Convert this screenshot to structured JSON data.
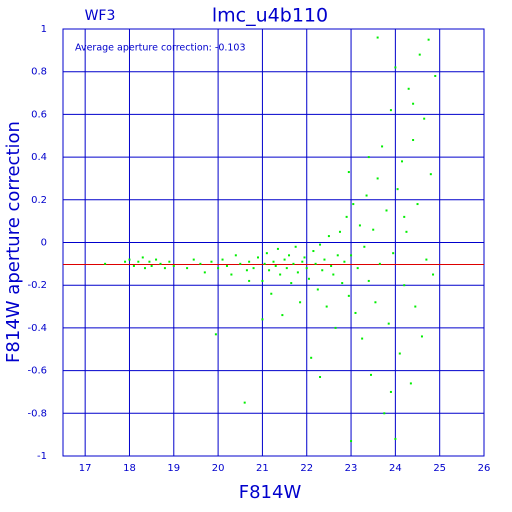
{
  "chart_data": {
    "type": "scatter",
    "title": "lmc_u4b110",
    "subtitle": "WF3",
    "x_label": "F814W",
    "y_label": "F814W aperture correction",
    "reference_line": {
      "value": -0.103,
      "label": "Average aperture correction: -0.103",
      "color": "#dd0000"
    },
    "color": "#00ee00",
    "axis_color": "#0000cc",
    "grid": true,
    "xlim": [
      16.5,
      26
    ],
    "ylim": [
      -1,
      1
    ],
    "xticks": [
      17,
      18,
      19,
      20,
      21,
      22,
      23,
      24,
      25,
      26
    ],
    "yticks": [
      -1,
      -0.8,
      -0.6,
      -0.4,
      -0.2,
      0,
      0.2,
      0.4,
      0.6,
      0.8,
      1
    ],
    "x": [
      17.45,
      17.9,
      18.0,
      18.1,
      18.2,
      18.3,
      18.35,
      18.45,
      18.5,
      18.6,
      18.7,
      18.8,
      18.9,
      19.0,
      19.3,
      19.45,
      19.6,
      19.7,
      19.85,
      19.95,
      20.0,
      20.1,
      20.2,
      20.3,
      20.4,
      20.5,
      20.6,
      20.65,
      20.7,
      20.8,
      20.9,
      21.0,
      21.05,
      21.1,
      21.15,
      21.2,
      21.25,
      21.3,
      21.35,
      21.4,
      21.45,
      21.5,
      21.55,
      21.6,
      21.65,
      21.7,
      21.75,
      21.8,
      21.85,
      21.9,
      21.95,
      22.0,
      22.05,
      22.1,
      22.15,
      22.2,
      22.25,
      22.3,
      22.35,
      22.4,
      22.45,
      22.5,
      22.55,
      22.6,
      22.65,
      22.7,
      22.75,
      22.8,
      22.85,
      22.9,
      22.95,
      23.0,
      23.05,
      23.1,
      23.15,
      23.2,
      23.25,
      23.3,
      23.35,
      23.4,
      23.45,
      23.5,
      23.55,
      23.6,
      23.65,
      23.7,
      23.75,
      23.8,
      23.85,
      23.9,
      23.95,
      24.0,
      24.0,
      24.05,
      24.1,
      24.15,
      24.2,
      24.25,
      24.3,
      24.35,
      24.4,
      24.45,
      24.5,
      24.55,
      24.6,
      24.65,
      24.7,
      24.75,
      24.8,
      24.85,
      24.9,
      23.0,
      22.3,
      23.6,
      22.95,
      21.0,
      20.7,
      24.2,
      23.9,
      24.4,
      23.4
    ],
    "values": [
      -0.1,
      -0.09,
      -0.08,
      -0.11,
      -0.09,
      -0.07,
      -0.12,
      -0.09,
      -0.11,
      -0.08,
      -0.1,
      -0.12,
      -0.09,
      -0.11,
      -0.12,
      -0.08,
      -0.1,
      -0.14,
      -0.09,
      -0.43,
      -0.12,
      -0.08,
      -0.11,
      -0.15,
      -0.06,
      -0.1,
      -0.75,
      -0.13,
      -0.09,
      -0.12,
      -0.07,
      -0.18,
      -0.1,
      -0.05,
      -0.13,
      -0.24,
      -0.09,
      -0.11,
      -0.03,
      -0.15,
      -0.34,
      -0.08,
      -0.12,
      -0.06,
      -0.19,
      -0.1,
      -0.02,
      -0.14,
      -0.28,
      -0.09,
      -0.07,
      -0.12,
      -0.17,
      -0.54,
      -0.04,
      -0.1,
      -0.22,
      -0.01,
      -0.13,
      -0.08,
      -0.3,
      0.03,
      -0.11,
      -0.15,
      -0.4,
      -0.06,
      0.05,
      -0.19,
      -0.09,
      0.12,
      -0.25,
      -0.06,
      0.18,
      -0.33,
      -0.12,
      0.08,
      -0.45,
      -0.02,
      0.22,
      -0.18,
      -0.62,
      0.06,
      -0.28,
      0.3,
      -0.1,
      0.45,
      -0.8,
      0.15,
      -0.38,
      0.62,
      -0.05,
      0.82,
      -0.92,
      0.25,
      -0.52,
      0.38,
      -0.2,
      0.05,
      0.72,
      -0.66,
      0.48,
      -0.3,
      0.18,
      0.88,
      -0.44,
      0.58,
      -0.08,
      0.95,
      0.32,
      -0.15,
      0.78,
      -0.93,
      -0.63,
      0.96,
      0.33,
      -0.36,
      -0.18,
      0.12,
      -0.7,
      0.65,
      0.4
    ]
  }
}
